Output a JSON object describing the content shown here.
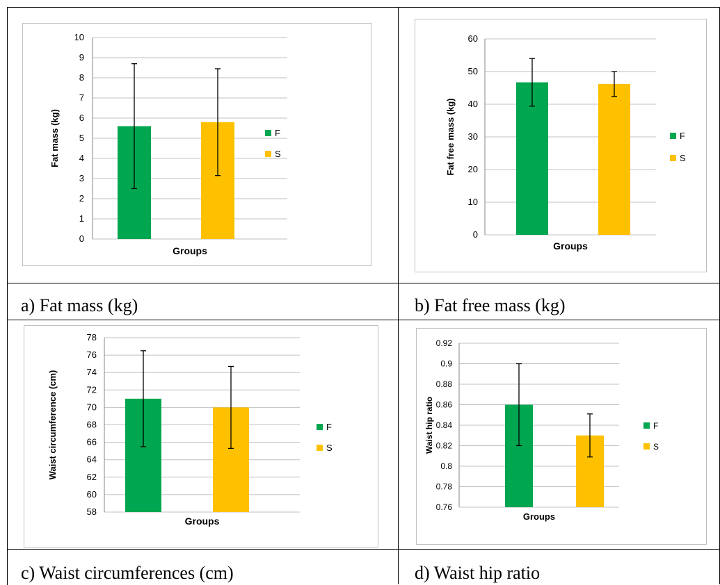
{
  "figure": {
    "captions": [
      "a) Fat mass (kg)",
      "b) Fat free mass (kg)",
      "c) Waist circumferences (cm)",
      "d) Waist hip ratio"
    ]
  },
  "colors": {
    "F": "#00a650",
    "S": "#ffc000",
    "grid": "#c0c0c0"
  },
  "chart_data": [
    {
      "type": "bar",
      "categories": [
        "F",
        "S"
      ],
      "values": [
        5.6,
        5.8
      ],
      "errors": [
        3.1,
        2.65
      ],
      "xlabel": "Groups",
      "ylabel": "Fat mass (kg)",
      "ylim": [
        0,
        10
      ],
      "yticks": [
        "0",
        "1",
        "2",
        "3",
        "4",
        "5",
        "6",
        "7",
        "8",
        "9",
        "10"
      ],
      "legend": [
        "F",
        "S"
      ],
      "legend_position": "right",
      "grid": true
    },
    {
      "type": "bar",
      "categories": [
        "F",
        "S"
      ],
      "values": [
        46.7,
        46.2
      ],
      "errors": [
        7.3,
        3.8
      ],
      "xlabel": "Groups",
      "ylabel": "Fat free mass (kg)",
      "ylim": [
        0,
        60
      ],
      "yticks": [
        "0",
        "10",
        "20",
        "30",
        "40",
        "50",
        "60"
      ],
      "legend": [
        "F",
        "S"
      ],
      "legend_position": "right",
      "grid": true
    },
    {
      "type": "bar",
      "categories": [
        "F",
        "S"
      ],
      "values": [
        71.0,
        70.0
      ],
      "errors": [
        5.5,
        4.7
      ],
      "xlabel": "Groups",
      "ylabel": "Waist circumference (cm)",
      "ylim": [
        58,
        78
      ],
      "yticks": [
        "58",
        "60",
        "62",
        "64",
        "66",
        "68",
        "70",
        "72",
        "74",
        "76",
        "78"
      ],
      "legend": [
        "F",
        "S"
      ],
      "legend_position": "right",
      "grid": true
    },
    {
      "type": "bar",
      "categories": [
        "F",
        "S"
      ],
      "values": [
        0.86,
        0.83
      ],
      "errors": [
        0.04,
        0.021
      ],
      "xlabel": "Groups",
      "ylabel": "Waist hip ratio",
      "ylim": [
        0.76,
        0.92
      ],
      "yticks": [
        "0.76",
        "0.78",
        "0.8",
        "0.82",
        "0.84",
        "0.86",
        "0.88",
        "0.9",
        "0.92"
      ],
      "legend": [
        "F",
        "S"
      ],
      "legend_position": "right",
      "grid": true
    }
  ]
}
